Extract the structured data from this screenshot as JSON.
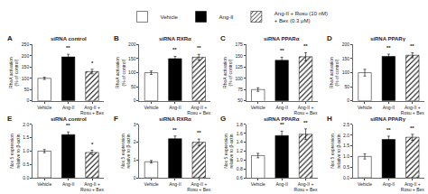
{
  "chart_data": [
    {
      "type": "bar",
      "title": "siRNA control",
      "ylabel": "RhoA activation\n(% of control)",
      "categories": [
        "Vehicle",
        "Ang-II",
        "Ang-II +\nRosu + Bex"
      ],
      "series": [
        {
          "name": "Vehicle",
          "color": "white",
          "values": [
            100,
            null,
            null
          ],
          "errors": [
            5,
            null,
            null
          ]
        },
        {
          "name": "Ang-II",
          "color": "black",
          "values": [
            null,
            195,
            null
          ],
          "errors": [
            null,
            12,
            null
          ]
        },
        {
          "name": "Ang-II + Rosu (10 nM)\n+ Bex (0.3 μM)",
          "color": "#aaaaaa",
          "marker": "hatched",
          "values": [
            null,
            null,
            130
          ],
          "errors": [
            null,
            null,
            10
          ]
        }
      ],
      "ylim": [
        0,
        250
      ],
      "yticks": [
        0,
        50,
        100,
        150,
        200,
        250
      ],
      "grid": false,
      "legend": "top",
      "annotations": [
        {
          "text": "A"
        },
        {
          "x": "Ang-II",
          "text": "**"
        },
        {
          "x": "Ang-II +\nRosu + Bex",
          "text": "*"
        }
      ]
    },
    {
      "type": "bar",
      "title": "siRNA RXRα",
      "ylabel": "RhoA activation\n(% of control)",
      "categories": [
        "Vehicle",
        "Ang-II",
        "Ang-II +\nRosu + Bex"
      ],
      "series": [
        {
          "name": "Vehicle",
          "color": "white",
          "values": [
            100,
            null,
            null
          ],
          "errors": [
            6,
            null,
            null
          ]
        },
        {
          "name": "Ang-II",
          "color": "black",
          "values": [
            null,
            150,
            null
          ],
          "errors": [
            null,
            8,
            null
          ]
        },
        {
          "name": "Ang-II + Rosu (10 nM)\n+ Bex (0.3 μM)",
          "color": "#aaaaaa",
          "marker": "hatched",
          "values": [
            null,
            null,
            155
          ],
          "errors": [
            null,
            null,
            10
          ]
        }
      ],
      "ylim": [
        0,
        200
      ],
      "yticks": [
        0,
        50,
        100,
        150,
        200
      ],
      "grid": false,
      "annotations": [
        {
          "text": "B"
        },
        {
          "x": "Ang-II",
          "text": "**"
        },
        {
          "x": "Ang-II +\nRosu + Bex",
          "text": "**"
        }
      ]
    },
    {
      "type": "bar",
      "title": "siRNA PPARα",
      "ylabel": "RhoA activation\n(% of control)",
      "categories": [
        "Vehicle",
        "Ang-II",
        "Ang-II +\nRosu + Bex"
      ],
      "series": [
        {
          "name": "Vehicle",
          "color": "white",
          "values": [
            75,
            null,
            null
          ],
          "errors": [
            4,
            null,
            null
          ]
        },
        {
          "name": "Ang-II",
          "color": "black",
          "values": [
            null,
            140,
            null
          ],
          "errors": [
            null,
            7,
            null
          ]
        },
        {
          "name": "Ang-II + Rosu (10 nM)\n+ Bex (0.3 μM)",
          "color": "#aaaaaa",
          "marker": "hatched",
          "values": [
            null,
            null,
            148
          ],
          "errors": [
            null,
            null,
            9
          ]
        }
      ],
      "ylim": [
        50,
        175
      ],
      "yticks": [
        50,
        75,
        100,
        125,
        150,
        175
      ],
      "grid": false,
      "annotations": [
        {
          "text": "C"
        },
        {
          "x": "Ang-II",
          "text": "**"
        },
        {
          "x": "Ang-II +\nRosu + Bex",
          "text": "**"
        }
      ]
    },
    {
      "type": "bar",
      "title": "siRNA PPARγ",
      "ylabel": "RhoA activation\n(% of control)",
      "categories": [
        "Vehicle",
        "Ang-II",
        "Ang-II +\nRosu + Bex"
      ],
      "series": [
        {
          "name": "Vehicle",
          "color": "white",
          "values": [
            100,
            null,
            null
          ],
          "errors": [
            12,
            null,
            null
          ]
        },
        {
          "name": "Ang-II",
          "color": "black",
          "values": [
            null,
            158,
            null
          ],
          "errors": [
            null,
            8,
            null
          ]
        },
        {
          "name": "Ang-II + Rosu (10 nM)\n+ Bex (0.3 μM)",
          "color": "#aaaaaa",
          "marker": "hatched",
          "values": [
            null,
            null,
            162
          ],
          "errors": [
            null,
            null,
            9
          ]
        }
      ],
      "ylim": [
        0,
        200
      ],
      "yticks": [
        0,
        50,
        100,
        150,
        200
      ],
      "grid": false,
      "annotations": [
        {
          "text": "D"
        },
        {
          "x": "Ang-II",
          "text": "**"
        },
        {
          "x": "Ang-II +\nRosu + Bex",
          "text": "**"
        }
      ]
    },
    {
      "type": "bar",
      "title": "siRNA control",
      "ylabel": "Nox 5 expression\nrelative to β-actin",
      "categories": [
        "Vehicle",
        "Ang-II",
        "Ang-II +\nRosu + Bex"
      ],
      "series": [
        {
          "name": "Vehicle",
          "color": "white",
          "values": [
            1.0,
            null,
            null
          ],
          "errors": [
            0.06,
            null,
            null
          ]
        },
        {
          "name": "Ang-II",
          "color": "black",
          "values": [
            null,
            1.62,
            null
          ],
          "errors": [
            null,
            0.1,
            null
          ]
        },
        {
          "name": "Ang-II + Rosu (10 nM)\n+ Bex (0.3 μM)",
          "color": "#aaaaaa",
          "marker": "hatched",
          "values": [
            null,
            null,
            0.95
          ],
          "errors": [
            null,
            null,
            0.08
          ]
        }
      ],
      "ylim": [
        0,
        2.0
      ],
      "yticks": [
        {
          "value": 0,
          "label": "0.0"
        },
        0.5,
        {
          "value": 1.0,
          "label": "1.0"
        },
        1.5,
        {
          "value": 2.0,
          "label": "2.0"
        }
      ],
      "grid": false,
      "annotations": [
        {
          "text": "E"
        },
        {
          "x": "Ang-II",
          "text": "**"
        },
        {
          "x": "Ang-II +\nRosu + Bex",
          "text": "*"
        }
      ]
    },
    {
      "type": "bar",
      "title": "siRNA RXRα",
      "ylabel": "Nox 5 expression\nrelative to β-actin",
      "categories": [
        "Vehicle",
        "Ang-II",
        "Ang-II +\nRosu + Bex"
      ],
      "series": [
        {
          "name": "Vehicle",
          "color": "white",
          "values": [
            0.9,
            null,
            null
          ],
          "errors": [
            0.07,
            null,
            null
          ]
        },
        {
          "name": "Ang-II",
          "color": "black",
          "values": [
            null,
            2.2,
            null
          ],
          "errors": [
            null,
            0.15,
            null
          ]
        },
        {
          "name": "Ang-II + Rosu (10 nM)\n+ Bex (0.3 μM)",
          "color": "#aaaaaa",
          "marker": "hatched",
          "values": [
            null,
            null,
            2.0
          ],
          "errors": [
            null,
            null,
            0.18
          ]
        }
      ],
      "ylim": [
        0,
        3
      ],
      "yticks": [
        0,
        1,
        2,
        3
      ],
      "grid": false,
      "annotations": [
        {
          "text": "F"
        },
        {
          "x": "Ang-II",
          "text": "**"
        },
        {
          "x": "Ang-II +\nRosu + Bex",
          "text": "**"
        }
      ]
    },
    {
      "type": "bar",
      "title": "siRNA PPARα",
      "ylabel": "Nox 5 expression\nrelative to β-actin",
      "categories": [
        "Vehicle",
        "Ang-II",
        "Ang-II +\nRosu + Bex"
      ],
      "series": [
        {
          "name": "Vehicle",
          "color": "white",
          "values": [
            1.1,
            null,
            null
          ],
          "errors": [
            0.05,
            null,
            null
          ]
        },
        {
          "name": "Ang-II",
          "color": "black",
          "values": [
            null,
            1.55,
            null
          ],
          "errors": [
            null,
            0.1,
            null
          ]
        },
        {
          "name": "Ang-II + Rosu (10 nM)\n+ Bex (0.3 μM)",
          "color": "#aaaaaa",
          "marker": "hatched",
          "values": [
            null,
            null,
            1.58
          ],
          "errors": [
            null,
            null,
            0.12
          ]
        }
      ],
      "ylim": [
        0.6,
        1.8
      ],
      "yticks": [
        0.6,
        0.8,
        {
          "value": 1.0,
          "label": "1.0"
        },
        1.2,
        1.4,
        1.6,
        1.8
      ],
      "grid": false,
      "annotations": [
        {
          "text": "G"
        },
        {
          "x": "Ang-II",
          "text": "**"
        },
        {
          "x": "Ang-II +\nRosu + Bex",
          "text": "**"
        }
      ]
    },
    {
      "type": "bar",
      "title": "siRNA PPARγ",
      "ylabel": "Nox 5 expression\nrelative to β-actin",
      "categories": [
        "Vehicle",
        "Ang-II",
        "Ang-II +\nRosu + Bex"
      ],
      "series": [
        {
          "name": "Vehicle",
          "color": "white",
          "values": [
            1.0,
            null,
            null
          ],
          "errors": [
            0.12,
            null,
            null
          ]
        },
        {
          "name": "Ang-II",
          "color": "black",
          "values": [
            null,
            1.8,
            null
          ],
          "errors": [
            null,
            0.15,
            null
          ]
        },
        {
          "name": "Ang-II + Rosu (10 nM)\n+ Bex (0.3 μM)",
          "color": "#aaaaaa",
          "marker": "hatched",
          "values": [
            null,
            null,
            1.9
          ],
          "errors": [
            null,
            null,
            0.14
          ]
        }
      ],
      "ylim": [
        0.0,
        2.5
      ],
      "yticks": [
        {
          "value": 0,
          "label": "0.0"
        },
        0.5,
        {
          "value": 1.0,
          "label": "1.0"
        },
        1.5,
        {
          "value": 2.0,
          "label": "2.0"
        },
        2.5
      ],
      "grid": false,
      "annotations": [
        {
          "text": "H"
        },
        {
          "x": "Ang-II",
          "text": "**"
        },
        {
          "x": "Ang-II +\nRosu + Bex",
          "text": "**"
        }
      ]
    }
  ]
}
